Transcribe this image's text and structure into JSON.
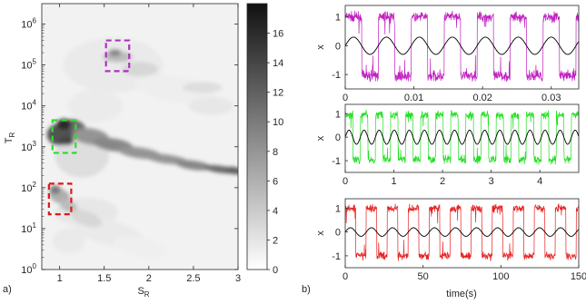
{
  "panel_labels": {
    "a": "a)",
    "b": "b)"
  },
  "colors": {
    "purple": "#c020c0",
    "green": "#20e020",
    "red": "#e82020",
    "drive": "#000000",
    "box_purple": "#b030c0",
    "box_green": "#30dd30",
    "box_red": "#e01818"
  },
  "chart_data": [
    {
      "type": "heatmap",
      "id": "a",
      "xlabel": "S_R",
      "ylabel": "T_R",
      "xlim": [
        0.8,
        3.0
      ],
      "ylim_log10": [
        0,
        6.5
      ],
      "x_ticks": [
        "1",
        "1.5",
        "2",
        "2.5",
        "3"
      ],
      "y_ticks": [
        {
          "base": "10",
          "exp": "0"
        },
        {
          "base": "10",
          "exp": "1"
        },
        {
          "base": "10",
          "exp": "2"
        },
        {
          "base": "10",
          "exp": "3"
        },
        {
          "base": "10",
          "exp": "4"
        },
        {
          "base": "10",
          "exp": "5"
        },
        {
          "base": "10",
          "exp": "6"
        }
      ],
      "colorbar": {
        "range": [
          0,
          18
        ],
        "ticks": [
          "0",
          "2",
          "4",
          "6",
          "8",
          "10",
          "12",
          "14",
          "16"
        ],
        "colormap": "gray-reversed"
      },
      "highlight_boxes": [
        {
          "color": "purple",
          "x_range": [
            1.52,
            1.78
          ],
          "log10_y_range": [
            4.85,
            5.6
          ]
        },
        {
          "color": "green",
          "x_range": [
            0.92,
            1.18
          ],
          "log10_y_range": [
            2.85,
            3.65
          ]
        },
        {
          "color": "red",
          "x_range": [
            0.88,
            1.13
          ],
          "log10_y_range": [
            1.35,
            2.1
          ]
        }
      ]
    },
    {
      "type": "line",
      "id": "b1",
      "ylabel": "x",
      "xlim": [
        0,
        0.034
      ],
      "ylim": [
        -1.5,
        1.4
      ],
      "x_ticks": [
        "0",
        "0.01",
        "0.02",
        "0.03"
      ],
      "y_ticks": [
        "1",
        "0",
        "-1"
      ],
      "series": [
        {
          "color": "purple",
          "kind": "switching",
          "period": 0.0048,
          "phase": 0.0,
          "high": 1.0,
          "low": -1.05,
          "noise": 0.22
        },
        {
          "color": "drive",
          "kind": "sinusoid",
          "period": 0.0048,
          "phase": 0.0,
          "amplitude": 0.3
        }
      ]
    },
    {
      "type": "line",
      "id": "b2",
      "ylabel": "x",
      "xlim": [
        0,
        4.8
      ],
      "ylim": [
        -1.5,
        1.4
      ],
      "x_ticks": [
        "0",
        "1",
        "2",
        "3",
        "4"
      ],
      "y_ticks": [
        "1",
        "0",
        "-1"
      ],
      "series": [
        {
          "color": "green",
          "kind": "switching",
          "period": 0.31,
          "phase": 0.0,
          "high": 0.95,
          "low": -0.95,
          "noise": 0.22
        },
        {
          "color": "drive",
          "kind": "sinusoid",
          "period": 0.31,
          "phase": 0.0,
          "amplitude": 0.3
        }
      ]
    },
    {
      "type": "line",
      "id": "b3",
      "ylabel": "x",
      "xlabel": "time(s)",
      "xlim": [
        0,
        150
      ],
      "ylim": [
        -1.5,
        1.4
      ],
      "x_ticks": [
        "0",
        "50",
        "100",
        "150"
      ],
      "y_ticks": [
        "1",
        "0",
        "-1"
      ],
      "series": [
        {
          "color": "red",
          "kind": "switching",
          "period": 13.5,
          "phase": 0.0,
          "high": 1.0,
          "low": -1.0,
          "noise": 0.2
        },
        {
          "color": "drive",
          "kind": "sinusoid",
          "period": 13.5,
          "phase": 0.0,
          "amplitude": 0.18
        }
      ]
    }
  ]
}
